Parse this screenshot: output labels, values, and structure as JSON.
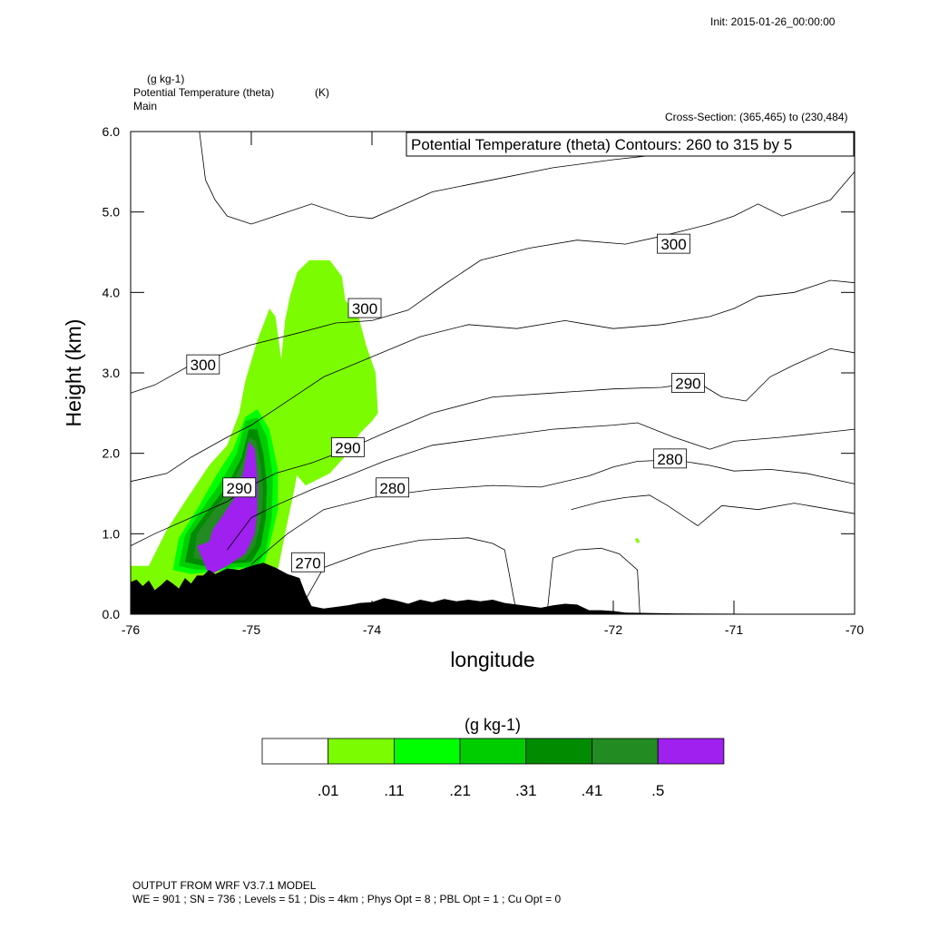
{
  "header": {
    "init": "Init: 2015-01-26_00:00:00",
    "field_units": "(g kg-1)",
    "field_name": "Potential Temperature (theta)",
    "field_name_units": "(K)",
    "panel": "Main",
    "cross_section": "Cross-Section: (365,465) to (230,484)"
  },
  "legend_box": "Potential Temperature (theta)  Contours: 260 to 315 by 5",
  "footer": {
    "line1": "OUTPUT FROM WRF V3.7.1 MODEL",
    "line2": "WE = 901 ; SN = 736 ; Levels = 51 ; Dis = 4km ; Phys Opt = 8 ; PBL Opt = 1 ; Cu Opt = 0"
  },
  "colorbar": {
    "title": "(g kg-1)",
    "labels": [
      ".01",
      ".11",
      ".21",
      ".31",
      ".41",
      ".5"
    ],
    "colors": [
      "#ffffff",
      "#7cfc00",
      "#00ff00",
      "#00cd00",
      "#008b00",
      "#228b22",
      "#a020f0"
    ]
  },
  "chart_data": {
    "type": "contour",
    "xlabel": "longitude",
    "ylabel": "Height (km)",
    "xlim": [
      -76,
      -70
    ],
    "ylim": [
      0,
      6
    ],
    "xticks": [
      -76,
      -75,
      -74,
      -72,
      -71,
      -70
    ],
    "xtick_labels": [
      "-76",
      "-75",
      "-74",
      "-72",
      "-71",
      "-70"
    ],
    "yticks": [
      0,
      1,
      2,
      3,
      4,
      5,
      6
    ],
    "ytick_labels": [
      "0.0",
      "1.0",
      "2.0",
      "3.0",
      "4.0",
      "5.0",
      "6.0"
    ],
    "contour_levels": [
      260,
      315,
      5
    ],
    "contour_labels": [
      {
        "text": "300",
        "x": -75.4,
        "y": 3.1
      },
      {
        "text": "300",
        "x": -74.06,
        "y": 3.8
      },
      {
        "text": "300",
        "x": -71.5,
        "y": 4.6
      },
      {
        "text": "290",
        "x": -74.2,
        "y": 2.07
      },
      {
        "text": "290",
        "x": -75.1,
        "y": 1.57
      },
      {
        "text": "290",
        "x": -71.38,
        "y": 2.87
      },
      {
        "text": "280",
        "x": -73.83,
        "y": 1.57
      },
      {
        "text": "280",
        "x": -71.53,
        "y": 1.93
      },
      {
        "text": "270",
        "x": -74.53,
        "y": 0.64
      }
    ],
    "contour_lines": [
      [
        [
          -75.43,
          6.0
        ],
        [
          -75.38,
          5.4
        ],
        [
          -75.3,
          5.15
        ],
        [
          -75.2,
          4.95
        ],
        [
          -75.0,
          4.85
        ],
        [
          -74.8,
          4.95
        ],
        [
          -74.5,
          5.1
        ],
        [
          -74.2,
          4.95
        ],
        [
          -74.0,
          4.92
        ],
        [
          -73.8,
          5.05
        ],
        [
          -73.5,
          5.25
        ],
        [
          -73.0,
          5.4
        ],
        [
          -72.5,
          5.55
        ],
        [
          -72.0,
          5.65
        ],
        [
          -71.7,
          5.7
        ],
        [
          -71.55,
          5.78
        ]
      ],
      [
        [
          -71.55,
          5.78
        ],
        [
          -71.0,
          5.85
        ],
        [
          -70.5,
          5.92
        ],
        [
          -70.0,
          5.98
        ]
      ],
      [
        [
          -76.0,
          2.75
        ],
        [
          -75.8,
          2.85
        ],
        [
          -75.5,
          3.1
        ],
        [
          -75.2,
          3.25
        ],
        [
          -75.0,
          3.35
        ],
        [
          -74.6,
          3.5
        ],
        [
          -74.3,
          3.62
        ],
        [
          -74.0,
          3.65
        ],
        [
          -73.7,
          3.78
        ],
        [
          -73.4,
          4.1
        ],
        [
          -73.1,
          4.4
        ],
        [
          -72.7,
          4.55
        ],
        [
          -72.3,
          4.65
        ],
        [
          -71.9,
          4.6
        ],
        [
          -71.6,
          4.7
        ],
        [
          -71.2,
          4.85
        ],
        [
          -71.0,
          4.95
        ],
        [
          -70.8,
          5.1
        ],
        [
          -70.6,
          4.95
        ],
        [
          -70.4,
          5.05
        ],
        [
          -70.2,
          5.15
        ],
        [
          -70.0,
          5.5
        ]
      ],
      [
        [
          -76.0,
          1.65
        ],
        [
          -75.7,
          1.75
        ],
        [
          -75.5,
          1.95
        ],
        [
          -75.2,
          2.2
        ],
        [
          -75.0,
          2.35
        ],
        [
          -74.8,
          2.55
        ],
        [
          -74.6,
          2.75
        ],
        [
          -74.4,
          2.95
        ],
        [
          -74.0,
          3.2
        ],
        [
          -73.6,
          3.45
        ],
        [
          -73.2,
          3.6
        ],
        [
          -72.8,
          3.55
        ],
        [
          -72.4,
          3.65
        ],
        [
          -72.0,
          3.55
        ],
        [
          -71.6,
          3.6
        ],
        [
          -71.2,
          3.7
        ],
        [
          -71.0,
          3.8
        ],
        [
          -70.8,
          3.95
        ],
        [
          -70.5,
          4.0
        ],
        [
          -70.2,
          4.15
        ],
        [
          -70.0,
          4.12
        ]
      ],
      [
        [
          -76.0,
          0.85
        ],
        [
          -75.8,
          1.0
        ],
        [
          -75.5,
          1.2
        ],
        [
          -75.2,
          1.4
        ],
        [
          -75.0,
          1.6
        ],
        [
          -74.8,
          1.75
        ],
        [
          -74.5,
          1.88
        ],
        [
          -74.2,
          2.05
        ],
        [
          -73.9,
          2.25
        ],
        [
          -73.5,
          2.5
        ],
        [
          -73.0,
          2.7
        ],
        [
          -72.5,
          2.75
        ],
        [
          -72.0,
          2.8
        ],
        [
          -71.6,
          2.82
        ],
        [
          -71.3,
          2.88
        ],
        [
          -71.1,
          2.7
        ],
        [
          -70.9,
          2.65
        ],
        [
          -70.7,
          2.95
        ],
        [
          -70.5,
          3.1
        ],
        [
          -70.2,
          3.3
        ],
        [
          -70.0,
          3.25
        ]
      ],
      [
        [
          -75.2,
          0.8
        ],
        [
          -75.0,
          1.2
        ],
        [
          -74.8,
          1.35
        ],
        [
          -74.5,
          1.55
        ],
        [
          -74.2,
          1.72
        ],
        [
          -73.9,
          1.9
        ],
        [
          -73.5,
          2.1
        ],
        [
          -73.0,
          2.2
        ],
        [
          -72.5,
          2.3
        ],
        [
          -72.0,
          2.35
        ],
        [
          -71.8,
          2.38
        ],
        [
          -71.5,
          2.2
        ],
        [
          -71.2,
          2.05
        ],
        [
          -71.0,
          2.15
        ],
        [
          -70.6,
          2.2
        ],
        [
          -70.3,
          2.25
        ],
        [
          -70.0,
          2.3
        ]
      ],
      [
        [
          -75.0,
          0.62
        ],
        [
          -74.7,
          1.0
        ],
        [
          -74.4,
          1.3
        ],
        [
          -74.0,
          1.45
        ],
        [
          -73.5,
          1.55
        ],
        [
          -73.0,
          1.6
        ],
        [
          -72.6,
          1.58
        ],
        [
          -72.2,
          1.72
        ],
        [
          -72.0,
          1.83
        ],
        [
          -71.8,
          1.9
        ],
        [
          -71.5,
          1.92
        ],
        [
          -71.2,
          1.85
        ],
        [
          -71.0,
          1.78
        ],
        [
          -70.7,
          1.8
        ],
        [
          -70.4,
          1.75
        ],
        [
          -70.0,
          1.62
        ]
      ],
      [
        [
          -74.6,
          0.05
        ],
        [
          -74.4,
          0.58
        ],
        [
          -74.0,
          0.8
        ],
        [
          -73.6,
          0.92
        ],
        [
          -73.2,
          0.95
        ],
        [
          -73.0,
          0.88
        ],
        [
          -72.9,
          0.8
        ],
        [
          -72.8,
          0.0
        ]
      ],
      [
        [
          -72.55,
          0.0
        ],
        [
          -72.5,
          0.7
        ],
        [
          -72.3,
          0.8
        ],
        [
          -72.1,
          0.82
        ],
        [
          -71.95,
          0.75
        ],
        [
          -71.8,
          0.55
        ],
        [
          -71.78,
          0.0
        ]
      ],
      [
        [
          -72.35,
          1.3
        ],
        [
          -72.1,
          1.4
        ],
        [
          -71.9,
          1.45
        ],
        [
          -71.7,
          1.48
        ],
        [
          -71.55,
          1.35
        ],
        [
          -71.3,
          1.1
        ],
        [
          -71.1,
          1.35
        ],
        [
          -70.8,
          1.3
        ],
        [
          -70.5,
          1.38
        ],
        [
          -70.0,
          1.25
        ]
      ]
    ],
    "shaded_regions": [
      {
        "level": ".01",
        "outline": [
          [
            -76.0,
            0.3
          ],
          [
            -76.0,
            0.6
          ],
          [
            -75.85,
            0.6
          ],
          [
            -75.7,
            1.05
          ],
          [
            -75.55,
            1.4
          ],
          [
            -75.35,
            1.85
          ],
          [
            -75.2,
            2.1
          ],
          [
            -75.1,
            2.5
          ],
          [
            -75.05,
            2.9
          ],
          [
            -75.0,
            3.15
          ],
          [
            -74.95,
            3.4
          ],
          [
            -74.85,
            3.8
          ],
          [
            -74.8,
            3.7
          ],
          [
            -74.75,
            3.15
          ],
          [
            -74.68,
            2.7
          ],
          [
            -74.62,
            2.35
          ],
          [
            -74.6,
            1.9
          ],
          [
            -74.65,
            1.5
          ],
          [
            -74.72,
            1.0
          ],
          [
            -74.78,
            0.55
          ],
          [
            -74.85,
            0.4
          ],
          [
            -75.9,
            0.3
          ]
        ]
      },
      {
        "level": ".01",
        "outline": [
          [
            -74.78,
            2.9
          ],
          [
            -74.75,
            3.2
          ],
          [
            -74.72,
            3.65
          ],
          [
            -74.68,
            3.95
          ],
          [
            -74.62,
            4.25
          ],
          [
            -74.52,
            4.4
          ],
          [
            -74.35,
            4.4
          ],
          [
            -74.25,
            4.2
          ],
          [
            -74.22,
            3.9
          ],
          [
            -74.12,
            3.75
          ],
          [
            -74.05,
            3.35
          ],
          [
            -73.97,
            3.0
          ],
          [
            -73.95,
            2.5
          ],
          [
            -74.0,
            2.4
          ],
          [
            -74.1,
            2.25
          ],
          [
            -74.2,
            2.0
          ],
          [
            -74.35,
            1.75
          ],
          [
            -74.55,
            1.6
          ],
          [
            -74.72,
            1.9
          ],
          [
            -74.75,
            2.4
          ]
        ]
      },
      {
        "level": ".11",
        "outline": [
          [
            -75.65,
            0.55
          ],
          [
            -75.6,
            0.95
          ],
          [
            -75.45,
            1.3
          ],
          [
            -75.3,
            1.7
          ],
          [
            -75.15,
            2.05
          ],
          [
            -75.05,
            2.45
          ],
          [
            -74.95,
            2.55
          ],
          [
            -74.85,
            2.3
          ],
          [
            -74.78,
            1.8
          ],
          [
            -74.78,
            1.3
          ],
          [
            -74.85,
            0.85
          ],
          [
            -74.9,
            0.6
          ],
          [
            -75.5,
            0.5
          ]
        ]
      },
      {
        "level": ".21",
        "outline": [
          [
            -75.6,
            0.6
          ],
          [
            -75.55,
            0.98
          ],
          [
            -75.42,
            1.28
          ],
          [
            -75.25,
            1.65
          ],
          [
            -75.12,
            2.0
          ],
          [
            -75.05,
            2.4
          ],
          [
            -74.95,
            2.45
          ],
          [
            -74.87,
            2.2
          ],
          [
            -74.82,
            1.7
          ],
          [
            -74.83,
            1.2
          ],
          [
            -74.88,
            0.8
          ],
          [
            -74.95,
            0.6
          ],
          [
            -75.45,
            0.55
          ]
        ]
      },
      {
        "level": ".31",
        "outline": [
          [
            -75.55,
            0.65
          ],
          [
            -75.5,
            1.0
          ],
          [
            -75.38,
            1.25
          ],
          [
            -75.2,
            1.6
          ],
          [
            -75.08,
            1.95
          ],
          [
            -75.02,
            2.3
          ],
          [
            -74.95,
            2.3
          ],
          [
            -74.9,
            2.0
          ],
          [
            -74.87,
            1.6
          ],
          [
            -74.88,
            1.2
          ],
          [
            -74.92,
            0.85
          ],
          [
            -75.0,
            0.65
          ],
          [
            -75.4,
            0.6
          ]
        ]
      },
      {
        "level": ".41",
        "outline": [
          [
            -75.48,
            0.7
          ],
          [
            -75.45,
            1.0
          ],
          [
            -75.33,
            1.25
          ],
          [
            -75.18,
            1.55
          ],
          [
            -75.07,
            1.9
          ],
          [
            -75.02,
            2.2
          ],
          [
            -74.96,
            2.15
          ],
          [
            -74.92,
            1.85
          ],
          [
            -74.9,
            1.5
          ],
          [
            -74.92,
            1.15
          ],
          [
            -74.97,
            0.85
          ],
          [
            -75.05,
            0.68
          ],
          [
            -75.35,
            0.65
          ]
        ]
      },
      {
        "level": ".5",
        "outline": [
          [
            -75.35,
            0.48
          ],
          [
            -75.45,
            0.85
          ],
          [
            -75.35,
            0.9
          ],
          [
            -75.32,
            1.05
          ],
          [
            -75.25,
            1.2
          ],
          [
            -75.15,
            1.42
          ],
          [
            -75.07,
            1.75
          ],
          [
            -75.02,
            2.15
          ],
          [
            -74.97,
            2.05
          ],
          [
            -74.95,
            1.7
          ],
          [
            -74.95,
            1.3
          ],
          [
            -74.97,
            1.0
          ],
          [
            -75.05,
            0.75
          ],
          [
            -75.2,
            0.6
          ]
        ]
      },
      {
        "level": ".01",
        "outline": [
          [
            -71.82,
            0.93
          ],
          [
            -71.8,
            0.88
          ],
          [
            -71.78,
            0.9
          ],
          [
            -71.8,
            0.95
          ]
        ]
      }
    ],
    "terrain_top": [
      [
        -76.0,
        0.4
      ],
      [
        -75.95,
        0.43
      ],
      [
        -75.9,
        0.35
      ],
      [
        -75.85,
        0.42
      ],
      [
        -75.8,
        0.3
      ],
      [
        -75.75,
        0.36
      ],
      [
        -75.7,
        0.43
      ],
      [
        -75.65,
        0.38
      ],
      [
        -75.6,
        0.32
      ],
      [
        -75.55,
        0.45
      ],
      [
        -75.5,
        0.38
      ],
      [
        -75.45,
        0.48
      ],
      [
        -75.4,
        0.48
      ],
      [
        -75.35,
        0.55
      ],
      [
        -75.3,
        0.5
      ],
      [
        -75.2,
        0.57
      ],
      [
        -75.1,
        0.55
      ],
      [
        -75.0,
        0.6
      ],
      [
        -74.9,
        0.64
      ],
      [
        -74.8,
        0.58
      ],
      [
        -74.7,
        0.5
      ],
      [
        -74.6,
        0.45
      ],
      [
        -74.55,
        0.25
      ],
      [
        -74.5,
        0.1
      ],
      [
        -74.4,
        0.07
      ],
      [
        -74.3,
        0.09
      ],
      [
        -74.2,
        0.11
      ],
      [
        -74.1,
        0.14
      ],
      [
        -74.0,
        0.15
      ],
      [
        -73.9,
        0.2
      ],
      [
        -73.8,
        0.17
      ],
      [
        -73.7,
        0.13
      ],
      [
        -73.6,
        0.18
      ],
      [
        -73.5,
        0.15
      ],
      [
        -73.4,
        0.19
      ],
      [
        -73.3,
        0.16
      ],
      [
        -73.2,
        0.18
      ],
      [
        -73.1,
        0.16
      ],
      [
        -73.0,
        0.18
      ],
      [
        -72.9,
        0.14
      ],
      [
        -72.8,
        0.12
      ],
      [
        -72.7,
        0.1
      ],
      [
        -72.6,
        0.08
      ],
      [
        -72.5,
        0.11
      ],
      [
        -72.4,
        0.13
      ],
      [
        -72.3,
        0.12
      ],
      [
        -72.2,
        0.05
      ],
      [
        -72.1,
        0.05
      ],
      [
        -72.0,
        0.04
      ],
      [
        -71.9,
        0.02
      ],
      [
        -71.5,
        0.01
      ],
      [
        -70.0,
        0.0
      ]
    ]
  }
}
